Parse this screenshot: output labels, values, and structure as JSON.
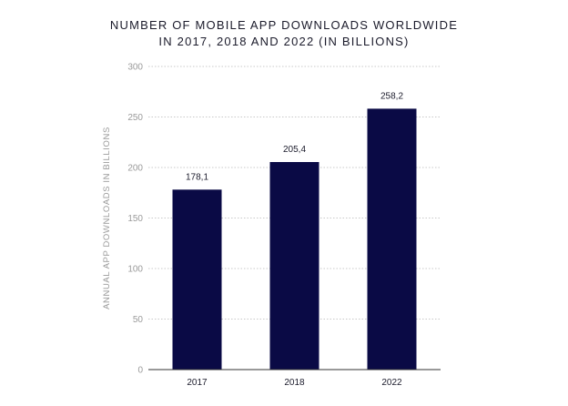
{
  "chart_data": {
    "type": "bar",
    "title_lines": [
      "NUMBER OF MOBILE APP DOWNLOADS WORLDWIDE",
      "IN 2017, 2018 AND 2022 (IN BILLIONS)"
    ],
    "categories": [
      "2017",
      "2018",
      "2022"
    ],
    "values": [
      178.1,
      205.4,
      258.2
    ],
    "value_labels": [
      "178,1",
      "205,4",
      "258,2"
    ],
    "xlabel": "",
    "ylabel": "ANNUAL APP DOWNLOADS IN BILLIONS",
    "ylim": [
      0,
      300
    ],
    "yticks": [
      0,
      50,
      100,
      150,
      200,
      250,
      300
    ],
    "grid": true,
    "bar_color": "#0a0a45"
  }
}
